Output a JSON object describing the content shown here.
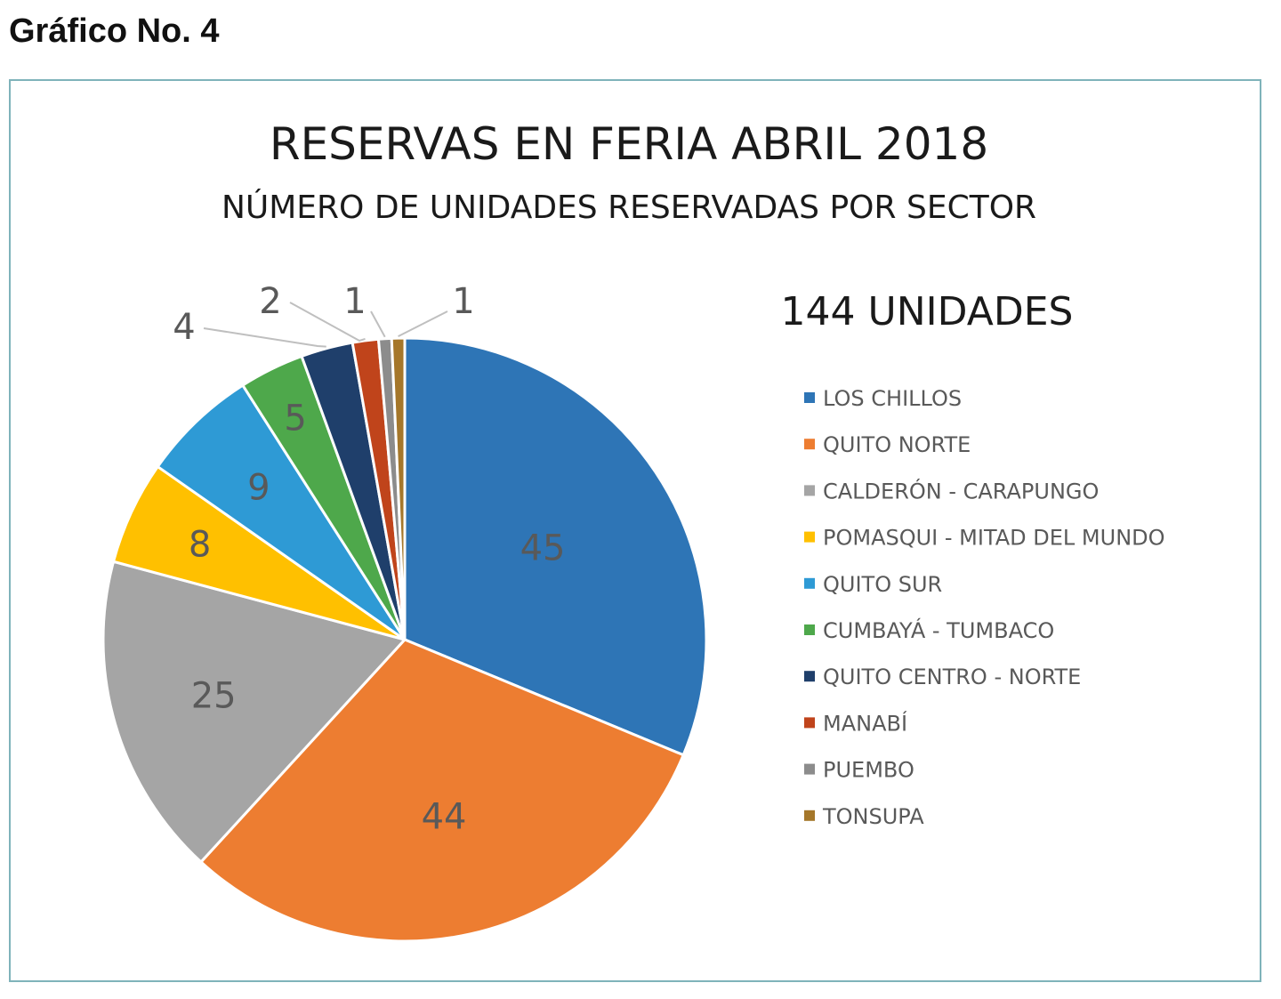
{
  "figure_label": "Gráfico No. 4",
  "chart_data": {
    "type": "pie",
    "title": "RESERVAS EN FERIA ABRIL 2018",
    "subtitle": "NÚMERO DE UNIDADES RESERVADAS POR SECTOR",
    "annotation": "144 UNIDADES",
    "legend_position": "right",
    "slices": [
      {
        "label": "LOS CHILLOS",
        "value": 45,
        "color": "#2e75b6"
      },
      {
        "label": "QUITO NORTE",
        "value": 44,
        "color": "#ed7d31"
      },
      {
        "label": "CALDERÓN - CARAPUNGO",
        "value": 25,
        "color": "#a5a5a5"
      },
      {
        "label": "POMASQUI - MITAD DEL MUNDO",
        "value": 8,
        "color": "#ffc000"
      },
      {
        "label": "QUITO SUR",
        "value": 9,
        "color": "#2e9ad5"
      },
      {
        "label": "CUMBAYÁ - TUMBACO",
        "value": 5,
        "color": "#4ea84b"
      },
      {
        "label": "QUITO CENTRO - NORTE",
        "value": 4,
        "color": "#1f3f6b"
      },
      {
        "label": "MANABÍ",
        "value": 2,
        "color": "#c0441b"
      },
      {
        "label": "PUEMBO",
        "value": 1,
        "color": "#8c8c8c"
      },
      {
        "label": "TONSUPA",
        "value": 1,
        "color": "#a5772a"
      }
    ]
  }
}
